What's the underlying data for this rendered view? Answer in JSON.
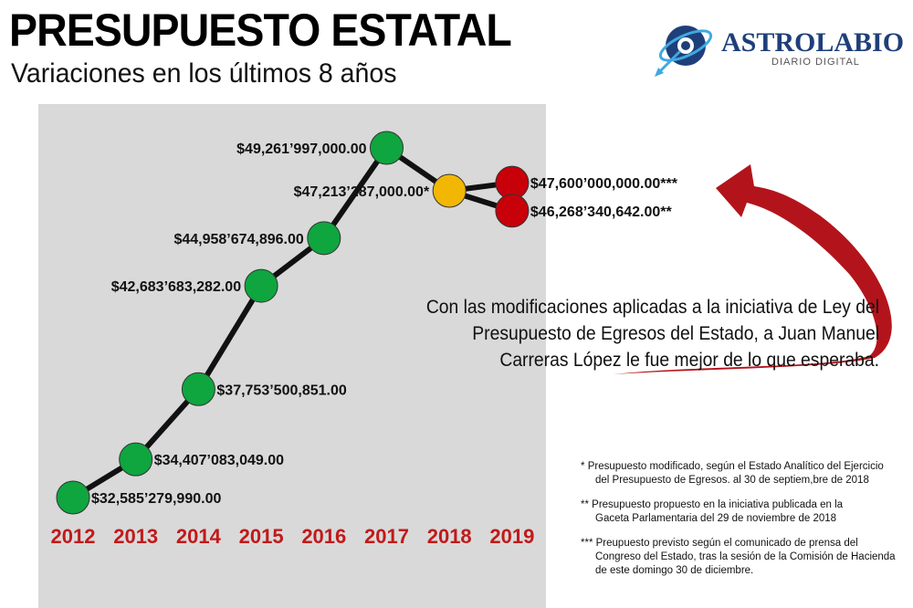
{
  "header": {
    "title": "PRESUPUESTO ESTATAL",
    "subtitle": "Variaciones en los últimos 8 años"
  },
  "logo": {
    "name": "ASTROLABIO",
    "tagline": "DIARIO DIGITAL"
  },
  "annotation": "Con las modificaciones aplicadas a la iniciativa de Ley del Presupuesto de Egresos del Estado, a Juan Manuel Carreras López le fue mejor de lo que esperaba.",
  "notes": [
    {
      "mark": "*",
      "line1": "Presupuesto modificado, según el Estado Analítico del Ejercicio",
      "line2": "del Presupuesto de Egresos. al 30 de septiem,bre de 2018"
    },
    {
      "mark": "**",
      "line1": "Presupuesto propuesto en la iniciativa publicada en la",
      "line2": "Gaceta Parlamentaria del 29 de noviembre de 2018"
    },
    {
      "mark": "***",
      "line1": "Preupuesto previsto según el comunicado de prensa del",
      "line2": "Congreso del Estado, tras la sesión de la Comisión de Hacienda de este domingo 30 de diciembre."
    }
  ],
  "colors": {
    "green": "#0fa53f",
    "yellow": "#f2b705",
    "red": "#c8000a",
    "line": "#111111",
    "panel": "#d9d9d9",
    "year_text": "#c01a1a",
    "arrow": "#b3141c"
  },
  "chart_data": {
    "type": "line",
    "title": "",
    "xlabel": "",
    "ylabel": "",
    "categories": [
      "2012",
      "2013",
      "2014",
      "2015",
      "2016",
      "2017",
      "2018",
      "2019"
    ],
    "ylim": [
      32000000000,
      50000000000
    ],
    "points": [
      {
        "year": "2012",
        "value": 32585279990.0,
        "label": "$32,585’279,990.00",
        "status": "actual"
      },
      {
        "year": "2013",
        "value": 34407083049.0,
        "label": "$34,407’083,049.00",
        "status": "actual"
      },
      {
        "year": "2014",
        "value": 37753500851.0,
        "label": "$37,753’500,851.00",
        "status": "actual"
      },
      {
        "year": "2015",
        "value": 42683683282.0,
        "label": "$42,683’683,282.00",
        "status": "actual"
      },
      {
        "year": "2016",
        "value": 44958674896.0,
        "label": "$44,958’674,896.00",
        "status": "actual"
      },
      {
        "year": "2017",
        "value": 49261997000.0,
        "label": "$49,261’997,000.00",
        "status": "actual"
      },
      {
        "year": "2018",
        "value": 47213287000.0,
        "label": "$47,213’287,000.00*",
        "status": "modified"
      }
    ],
    "branches": [
      {
        "year": "2019",
        "value": 47600000000.0,
        "label": "$47,600’000,000.00***",
        "status": "projected"
      },
      {
        "year": "2019",
        "value": 46268340642.0,
        "label": "$46,268’340,642.00**",
        "status": "proposed"
      }
    ]
  }
}
